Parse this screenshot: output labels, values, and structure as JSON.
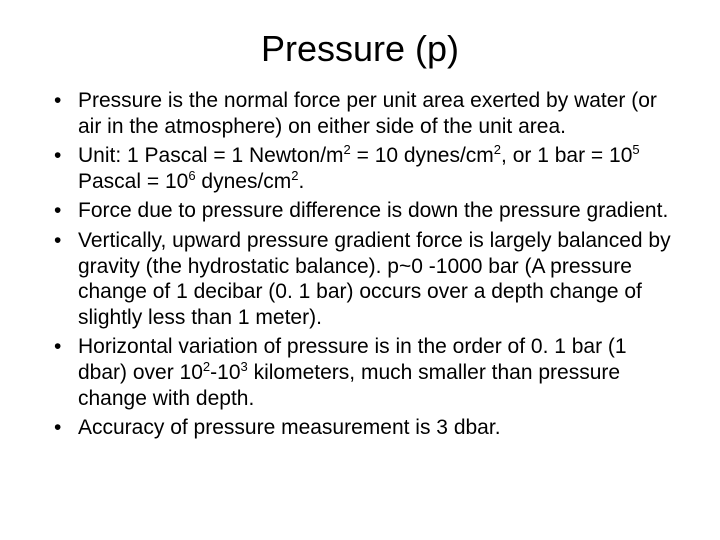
{
  "background_color": "#ffffff",
  "text_color": "#000000",
  "font_family": "Arial, Helvetica, sans-serif",
  "title": {
    "text": "Pressure (p)",
    "fontsize": 36,
    "align": "center"
  },
  "bullets": {
    "fontsize": 21,
    "items": [
      {
        "parts": [
          {
            "t": "Pressure is the normal force per unit area exerted by water (or air in the atmosphere) on either side of the unit area."
          }
        ]
      },
      {
        "parts": [
          {
            "t": "Unit: 1 Pascal = 1 Newton/m"
          },
          {
            "t": "2",
            "sup": true
          },
          {
            "t": " = 10 dynes/cm"
          },
          {
            "t": "2",
            "sup": true
          },
          {
            "t": ", or 1 bar = 10"
          },
          {
            "t": "5",
            "sup": true
          },
          {
            "t": " Pascal = 10"
          },
          {
            "t": "6",
            "sup": true
          },
          {
            "t": " dynes/cm"
          },
          {
            "t": "2",
            "sup": true
          },
          {
            "t": "."
          }
        ]
      },
      {
        "parts": [
          {
            "t": "Force due to pressure difference is down the pressure gradient."
          }
        ]
      },
      {
        "parts": [
          {
            "t": "Vertically, upward pressure gradient force is largely balanced by gravity (the hydrostatic balance). p~0 -1000 bar (A pressure change of 1 decibar (0. 1 bar) occurs over a depth change of slightly less than 1 meter)."
          }
        ]
      },
      {
        "parts": [
          {
            "t": "Horizontal variation of pressure is in the order of 0. 1 bar (1 dbar) over 10"
          },
          {
            "t": "2",
            "sup": true
          },
          {
            "t": "-10"
          },
          {
            "t": "3",
            "sup": true
          },
          {
            "t": " kilometers, much smaller than pressure change with depth."
          }
        ]
      },
      {
        "parts": [
          {
            "t": "Accuracy of pressure measurement is 3 dbar."
          }
        ]
      }
    ]
  }
}
